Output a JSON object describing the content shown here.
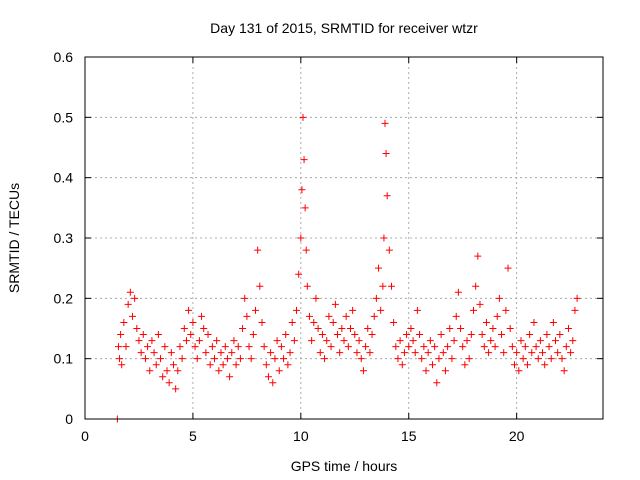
{
  "chart_data": {
    "type": "scatter",
    "title": "Day 131 of 2015, SRMTID for receiver wtzr",
    "xlabel": "GPS time / hours",
    "ylabel": "SRMTID / TECUs",
    "xlim": [
      0,
      24
    ],
    "ylim": [
      0,
      0.6
    ],
    "xticks": [
      0,
      5,
      10,
      15,
      20
    ],
    "xtick_labels": [
      "0",
      "5",
      "10",
      "15",
      "20"
    ],
    "yticks": [
      0,
      0.1,
      0.2,
      0.3,
      0.4,
      0.5,
      0.6
    ],
    "ytick_labels": [
      "0",
      "0.1",
      "0.2",
      "0.3",
      "0.4",
      "0.5",
      "0.6"
    ],
    "grid": true,
    "marker": "+",
    "marker_color": "#ff0000",
    "series": [
      {
        "name": "SRMTID",
        "x": [
          1.5,
          1.55,
          1.6,
          1.65,
          1.7,
          1.8,
          1.9,
          2.0,
          2.1,
          2.2,
          2.3,
          2.4,
          2.5,
          2.6,
          2.7,
          2.8,
          2.9,
          3.0,
          3.1,
          3.2,
          3.3,
          3.4,
          3.5,
          3.6,
          3.7,
          3.8,
          3.9,
          4.0,
          4.1,
          4.2,
          4.3,
          4.4,
          4.5,
          4.6,
          4.7,
          4.8,
          4.9,
          5.0,
          5.1,
          5.2,
          5.3,
          5.4,
          5.5,
          5.6,
          5.7,
          5.8,
          5.9,
          6.0,
          6.1,
          6.2,
          6.3,
          6.4,
          6.5,
          6.6,
          6.7,
          6.8,
          6.9,
          7.0,
          7.1,
          7.2,
          7.3,
          7.4,
          7.5,
          7.6,
          7.7,
          7.8,
          7.9,
          8.0,
          8.1,
          8.2,
          8.3,
          8.4,
          8.5,
          8.6,
          8.7,
          8.8,
          8.9,
          9.0,
          9.1,
          9.2,
          9.3,
          9.4,
          9.5,
          9.6,
          9.7,
          9.8,
          9.9,
          10.0,
          10.05,
          10.1,
          10.15,
          10.2,
          10.25,
          10.3,
          10.4,
          10.5,
          10.6,
          10.7,
          10.8,
          10.9,
          11.0,
          11.1,
          11.2,
          11.3,
          11.4,
          11.5,
          11.6,
          11.7,
          11.8,
          11.9,
          12.0,
          12.1,
          12.2,
          12.3,
          12.4,
          12.5,
          12.6,
          12.7,
          12.8,
          12.9,
          13.0,
          13.1,
          13.2,
          13.3,
          13.4,
          13.5,
          13.6,
          13.7,
          13.8,
          13.85,
          13.9,
          13.95,
          14.0,
          14.1,
          14.2,
          14.3,
          14.4,
          14.5,
          14.6,
          14.7,
          14.8,
          14.9,
          15.0,
          15.1,
          15.2,
          15.3,
          15.4,
          15.5,
          15.6,
          15.7,
          15.8,
          15.9,
          16.0,
          16.1,
          16.2,
          16.3,
          16.4,
          16.5,
          16.6,
          16.7,
          16.8,
          16.9,
          17.0,
          17.1,
          17.2,
          17.3,
          17.4,
          17.5,
          17.6,
          17.7,
          17.8,
          17.9,
          18.0,
          18.1,
          18.2,
          18.3,
          18.4,
          18.5,
          18.6,
          18.7,
          18.8,
          18.9,
          19.0,
          19.1,
          19.2,
          19.3,
          19.4,
          19.5,
          19.6,
          19.7,
          19.8,
          19.9,
          20.0,
          20.1,
          20.2,
          20.3,
          20.4,
          20.5,
          20.6,
          20.7,
          20.8,
          20.9,
          21.0,
          21.1,
          21.2,
          21.3,
          21.4,
          21.5,
          21.6,
          21.7,
          21.8,
          21.9,
          22.0,
          22.1,
          22.2,
          22.3,
          22.4,
          22.5,
          22.6,
          22.7,
          22.8
        ],
        "y": [
          0.0,
          0.12,
          0.1,
          0.14,
          0.09,
          0.16,
          0.12,
          0.19,
          0.21,
          0.17,
          0.2,
          0.15,
          0.13,
          0.11,
          0.14,
          0.1,
          0.12,
          0.08,
          0.13,
          0.11,
          0.09,
          0.14,
          0.1,
          0.07,
          0.12,
          0.08,
          0.06,
          0.11,
          0.09,
          0.05,
          0.08,
          0.12,
          0.1,
          0.15,
          0.13,
          0.18,
          0.14,
          0.16,
          0.12,
          0.1,
          0.13,
          0.17,
          0.15,
          0.11,
          0.14,
          0.09,
          0.12,
          0.1,
          0.13,
          0.08,
          0.11,
          0.09,
          0.12,
          0.1,
          0.07,
          0.11,
          0.13,
          0.09,
          0.12,
          0.1,
          0.15,
          0.2,
          0.17,
          0.12,
          0.1,
          0.14,
          0.18,
          0.28,
          0.22,
          0.16,
          0.12,
          0.09,
          0.07,
          0.11,
          0.06,
          0.1,
          0.13,
          0.08,
          0.12,
          0.1,
          0.14,
          0.09,
          0.11,
          0.16,
          0.13,
          0.18,
          0.24,
          0.3,
          0.38,
          0.5,
          0.43,
          0.35,
          0.28,
          0.22,
          0.17,
          0.13,
          0.16,
          0.2,
          0.15,
          0.11,
          0.14,
          0.1,
          0.13,
          0.17,
          0.12,
          0.16,
          0.19,
          0.14,
          0.11,
          0.15,
          0.13,
          0.17,
          0.12,
          0.15,
          0.18,
          0.14,
          0.11,
          0.13,
          0.1,
          0.08,
          0.12,
          0.15,
          0.11,
          0.14,
          0.17,
          0.2,
          0.25,
          0.18,
          0.22,
          0.3,
          0.49,
          0.44,
          0.37,
          0.28,
          0.22,
          0.16,
          0.12,
          0.1,
          0.13,
          0.09,
          0.11,
          0.14,
          0.12,
          0.15,
          0.13,
          0.11,
          0.18,
          0.14,
          0.1,
          0.12,
          0.08,
          0.11,
          0.13,
          0.09,
          0.12,
          0.06,
          0.1,
          0.14,
          0.11,
          0.08,
          0.12,
          0.15,
          0.1,
          0.13,
          0.17,
          0.21,
          0.15,
          0.12,
          0.09,
          0.13,
          0.1,
          0.14,
          0.18,
          0.22,
          0.27,
          0.19,
          0.14,
          0.12,
          0.16,
          0.11,
          0.13,
          0.15,
          0.12,
          0.17,
          0.2,
          0.14,
          0.11,
          0.18,
          0.25,
          0.15,
          0.12,
          0.09,
          0.11,
          0.08,
          0.13,
          0.1,
          0.12,
          0.09,
          0.14,
          0.11,
          0.16,
          0.12,
          0.1,
          0.13,
          0.11,
          0.09,
          0.14,
          0.12,
          0.1,
          0.16,
          0.13,
          0.11,
          0.14,
          0.1,
          0.08,
          0.12,
          0.15,
          0.11,
          0.13,
          0.18,
          0.2
        ]
      }
    ]
  }
}
